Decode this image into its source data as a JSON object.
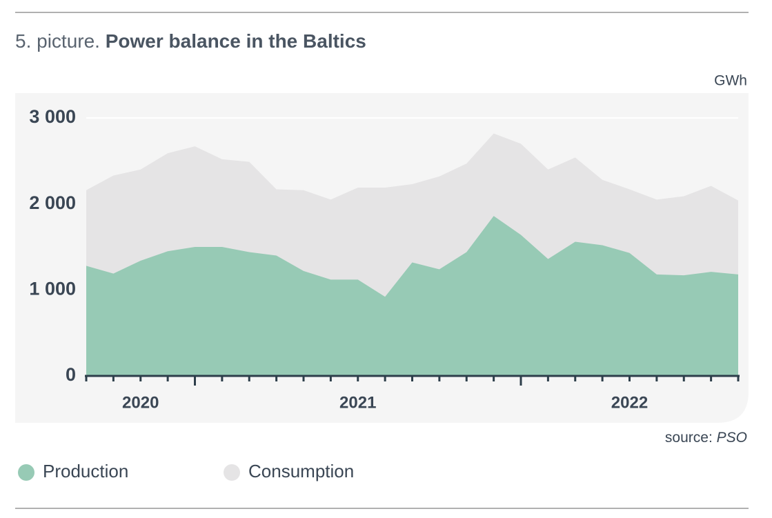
{
  "chart_data": {
    "type": "area",
    "title_prefix": "5. picture.",
    "title": "Power balance in the Baltics",
    "unit": "GWh",
    "source_label": "source:",
    "source": "PSO",
    "categories": [
      null,
      null,
      "2020",
      null,
      null,
      null,
      null,
      null,
      null,
      null,
      "2021",
      null,
      null,
      null,
      null,
      null,
      null,
      null,
      null,
      null,
      "2022",
      null,
      null,
      null,
      null
    ],
    "series": [
      {
        "name": "Consumption",
        "color": "#e5e4e5",
        "values": [
          2160,
          2330,
          2400,
          2590,
          2670,
          2520,
          2490,
          2170,
          2160,
          2050,
          2190,
          2190,
          2230,
          2320,
          2470,
          2820,
          2700,
          2400,
          2540,
          2280,
          2170,
          2050,
          2090,
          2210,
          2040
        ]
      },
      {
        "name": "Production",
        "color": "#97cab5",
        "values": [
          1280,
          1190,
          1340,
          1450,
          1500,
          1500,
          1440,
          1400,
          1220,
          1120,
          1120,
          920,
          1320,
          1240,
          1440,
          1860,
          1640,
          1360,
          1560,
          1520,
          1430,
          1180,
          1170,
          1210,
          1180
        ]
      }
    ],
    "legend_order": [
      1,
      0
    ],
    "ylim": [
      0,
      3000
    ],
    "yticks": [
      0,
      {
        "value": 1000,
        "label": "1 000"
      },
      {
        "value": 2000,
        "label": "2 000"
      },
      {
        "value": 3000,
        "label": "3 000"
      }
    ],
    "grid": true
  }
}
